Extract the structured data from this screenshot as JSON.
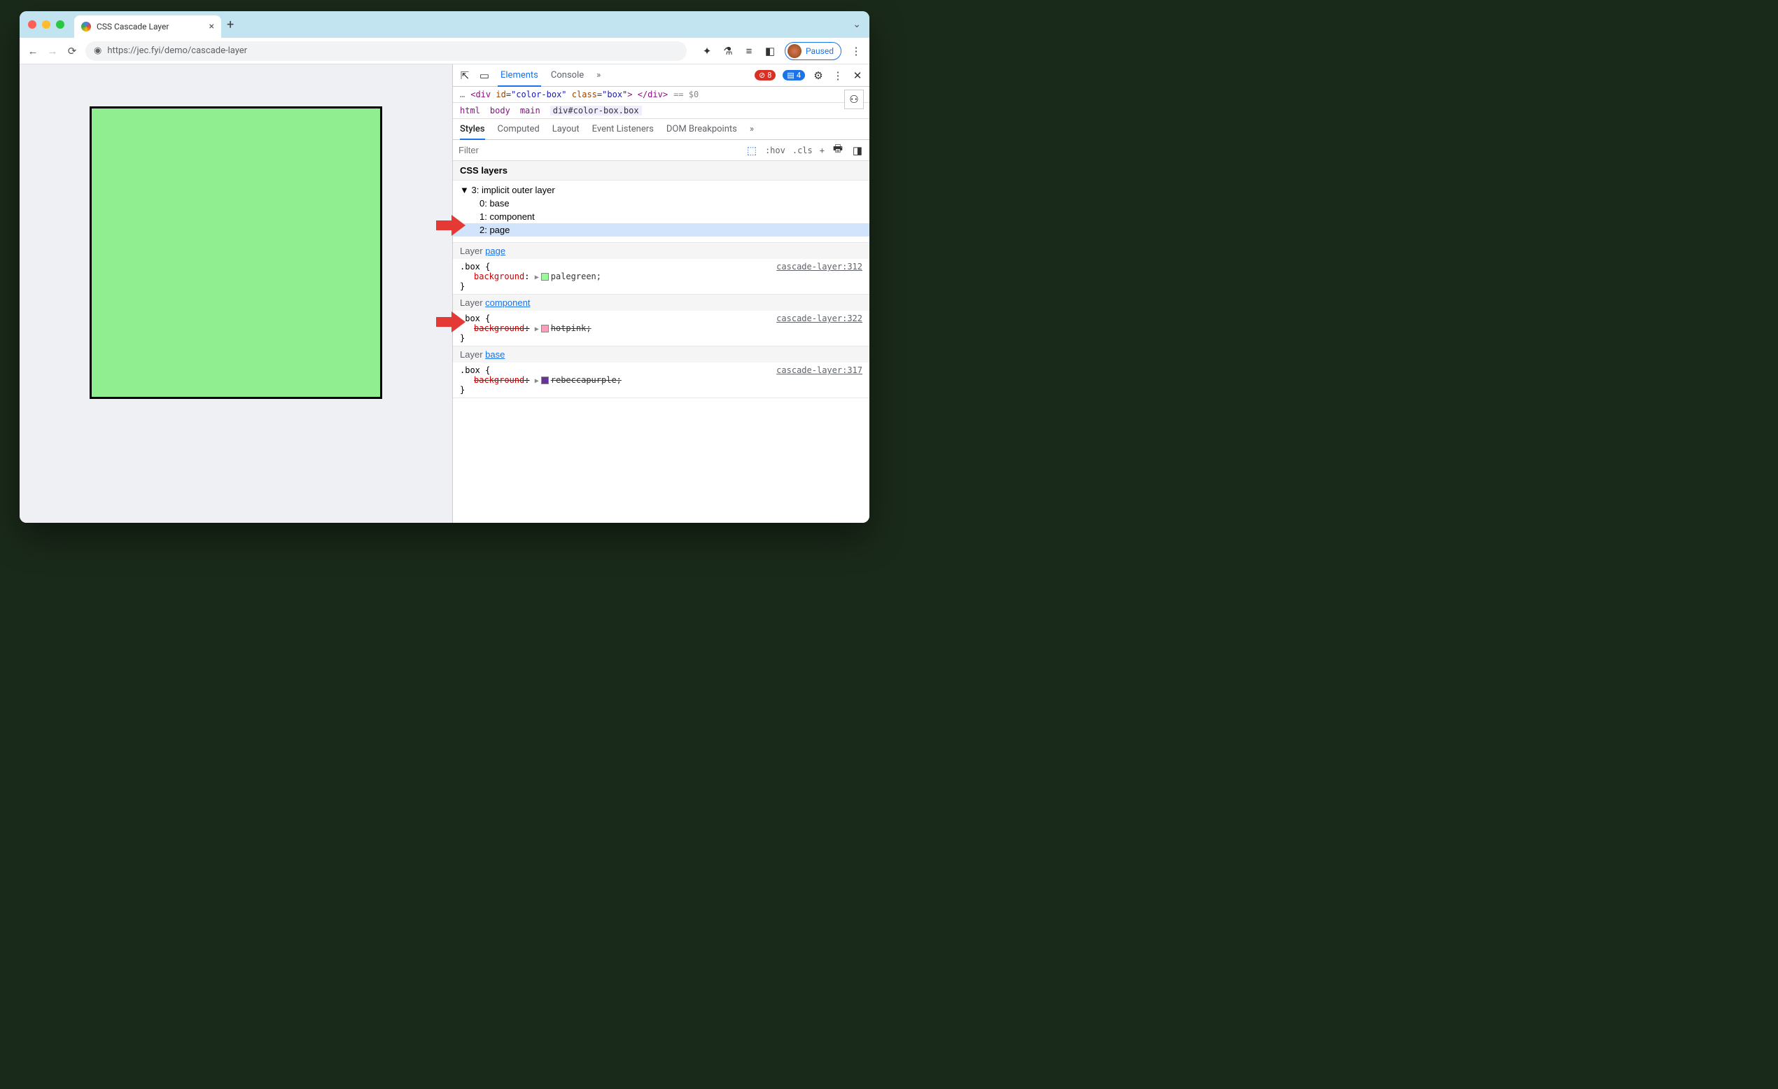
{
  "tab": {
    "title": "CSS Cascade Layer",
    "close": "×",
    "new": "+"
  },
  "address": {
    "url": "https://jec.fyi/demo/cascade-layer"
  },
  "paused_label": "Paused",
  "page": {
    "box_color": "#90ee90",
    "box_border": "#000000",
    "page_bg": "#eef0f3"
  },
  "devtools": {
    "tabs": {
      "elements": "Elements",
      "console": "Console",
      "more": "»"
    },
    "error_count": "8",
    "msg_count": "4",
    "dom_line": {
      "prefix": "…",
      "html": "<div id=\"color-box\" class=\"box\"> </div>",
      "suffix": "== $0"
    },
    "breadcrumb": [
      "html",
      "body",
      "main",
      "div#color-box.box"
    ],
    "subtabs": [
      "Styles",
      "Computed",
      "Layout",
      "Event Listeners",
      "DOM Breakpoints",
      "»"
    ],
    "filter_placeholder": "Filter",
    "filter_tools": {
      "hov": ":hov",
      "cls": ".cls",
      "plus": "+"
    },
    "css_layers_header": "CSS layers",
    "layer_tree": {
      "root": "3: implicit outer layer",
      "children": [
        "0: base",
        "1: component",
        "2: page"
      ],
      "selected_index": 2
    },
    "rules": [
      {
        "layer": "page",
        "selector": ".box",
        "props": [
          {
            "name": "background",
            "value": "palegreen",
            "swatch": "#98fb98",
            "strike": false
          }
        ],
        "source": "cascade-layer:312"
      },
      {
        "layer": "component",
        "selector": ".box",
        "props": [
          {
            "name": "background",
            "value": "hotpink",
            "swatch": "#ff9ebb",
            "strike": true
          }
        ],
        "source": "cascade-layer:322"
      },
      {
        "layer": "base",
        "selector": ".box",
        "props": [
          {
            "name": "background",
            "value": "rebeccapurple",
            "swatch": "#663399",
            "strike": true
          }
        ],
        "source": "cascade-layer:317"
      }
    ]
  }
}
